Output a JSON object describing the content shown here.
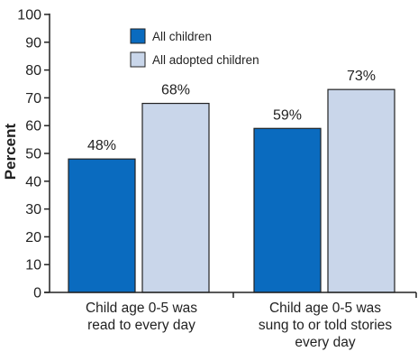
{
  "colors": {
    "series_all": "#0a6bbf",
    "series_adopted": "#c9d6ea",
    "axis": "#222222",
    "bar_outline": "#222222"
  },
  "chart_data": {
    "type": "bar",
    "title": "",
    "xlabel": "",
    "ylabel": "Percent",
    "ylim": [
      0,
      100
    ],
    "yticks": [
      "0",
      "10",
      "20",
      "30",
      "40",
      "50",
      "60",
      "70",
      "80",
      "90",
      "100"
    ],
    "grid": false,
    "legend_position": "top-center",
    "categories": [
      [
        "Child age 0-5 was",
        "read to every day"
      ],
      [
        "Child age 0-5 was",
        "sung to or told stories",
        "every day"
      ]
    ],
    "series": [
      {
        "name": "All children",
        "values": [
          48,
          59
        ],
        "labels": [
          "48%",
          "59%"
        ]
      },
      {
        "name": "All adopted children",
        "values": [
          68,
          73
        ],
        "labels": [
          "68%",
          "73%"
        ]
      }
    ]
  }
}
